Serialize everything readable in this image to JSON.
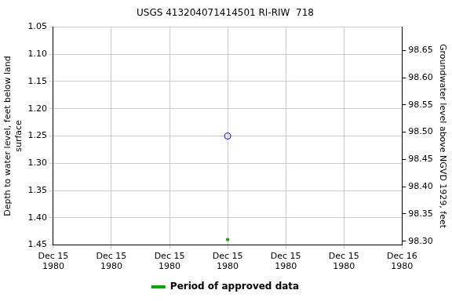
{
  "chart_data": {
    "type": "line",
    "title": "USGS 413204071414501 RI-RIW  718",
    "y_label": "Depth to water level, feet below land surface",
    "y2_label": "Groundwater level above NGVD 1929, feet",
    "categories": [
      "Dec 15\n1980",
      "Dec 15\n1980",
      "Dec 15\n1980",
      "Dec 15\n1980",
      "Dec 15\n1980",
      "Dec 15\n1980",
      "Dec 16\n1980"
    ],
    "series": [
      {
        "color": "#0000ff",
        "marker": "circle",
        "values": [
          null,
          null,
          null,
          1.25,
          null,
          null,
          null
        ]
      },
      {
        "name": "Period of approved data",
        "color": "#00aa00",
        "marker": "square",
        "values": [
          null,
          null,
          null,
          1.44,
          null,
          null,
          null
        ]
      }
    ],
    "ylim": [
      1.45,
      1.05
    ],
    "yticks": [
      1.05,
      {
        "value": 1.1,
        "label": "1.10"
      },
      1.15,
      {
        "value": 1.2,
        "label": "1.20"
      },
      1.25,
      {
        "value": 1.3,
        "label": "1.30"
      },
      1.35,
      {
        "value": 1.4,
        "label": "1.40"
      },
      1.45
    ],
    "y2lim": [
      98.293,
      98.693
    ],
    "y2ticks": [
      {
        "value": 98.3,
        "label": "98.30"
      },
      98.35,
      {
        "value": 98.4,
        "label": "98.40"
      },
      98.45,
      {
        "value": 98.5,
        "label": "98.50"
      },
      98.55,
      {
        "value": 98.6,
        "label": "98.60"
      },
      98.65
    ],
    "grid": true,
    "legend": "bottom"
  }
}
